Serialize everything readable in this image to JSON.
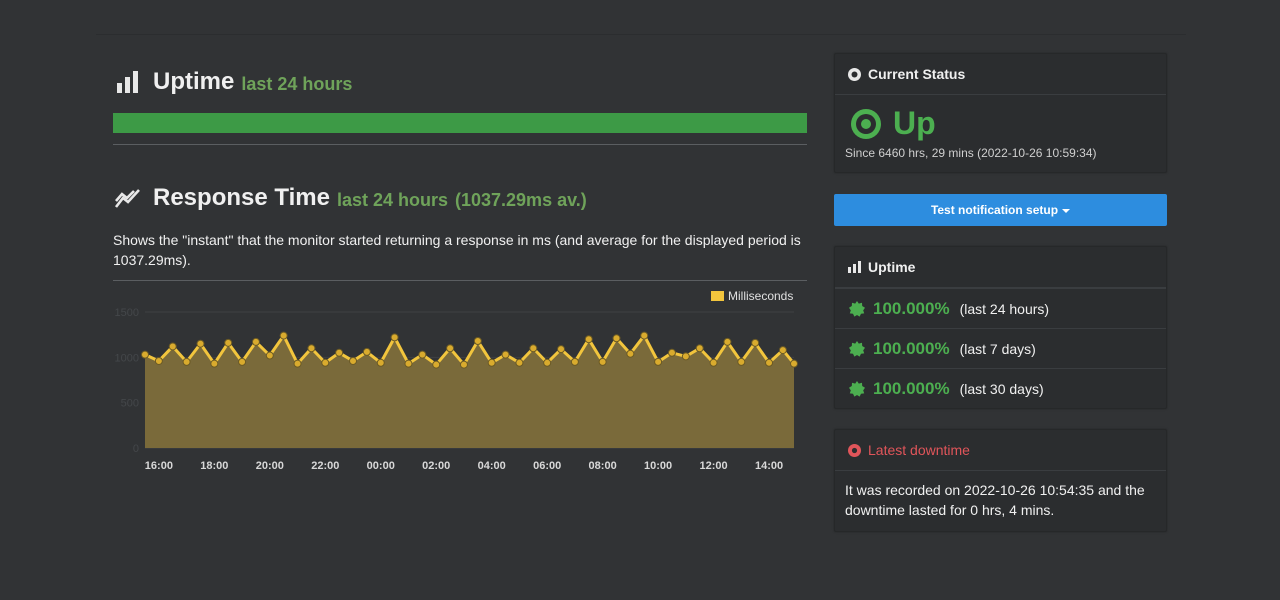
{
  "uptime_section": {
    "title": "Uptime",
    "subtitle": "last 24 hours",
    "bar_fraction": 1.0
  },
  "response_section": {
    "title": "Response Time",
    "subtitle": "last 24 hours",
    "average": "(1037.29ms av.)",
    "description": "Shows the \"instant\" that the monitor started returning a response in ms (and average for the displayed period is 1037.29ms)."
  },
  "chart_data": {
    "type": "area",
    "title": "",
    "xlabel": "",
    "ylabel": "",
    "legend": {
      "label": "Milliseconds",
      "placement": "top-right"
    },
    "ylim": [
      0,
      1500
    ],
    "y_ticks": [
      "1500",
      "1000",
      "500",
      "0"
    ],
    "x_ticks": [
      "16:00",
      "18:00",
      "20:00",
      "22:00",
      "00:00",
      "02:00",
      "04:00",
      "06:00",
      "08:00",
      "10:00",
      "12:00",
      "14:00"
    ],
    "x_hours_range": [
      15.5,
      14.9
    ],
    "series": [
      {
        "name": "Milliseconds",
        "color": "#f2c53d",
        "x": [
          "15:30",
          "16:00",
          "16:30",
          "17:00",
          "17:30",
          "18:00",
          "18:30",
          "19:00",
          "19:30",
          "20:00",
          "20:30",
          "21:00",
          "21:30",
          "22:00",
          "22:30",
          "23:00",
          "23:30",
          "00:00",
          "00:30",
          "01:00",
          "01:30",
          "02:00",
          "02:30",
          "03:00",
          "03:30",
          "04:00",
          "04:30",
          "05:00",
          "05:30",
          "06:00",
          "06:30",
          "07:00",
          "07:30",
          "08:00",
          "08:30",
          "09:00",
          "09:30",
          "10:00",
          "10:30",
          "11:00",
          "11:30",
          "12:00",
          "12:30",
          "13:00",
          "13:30",
          "14:00",
          "14:30",
          "14:54"
        ],
        "values": [
          1030,
          960,
          1120,
          950,
          1150,
          930,
          1160,
          950,
          1170,
          1020,
          1240,
          930,
          1100,
          940,
          1050,
          960,
          1060,
          940,
          1220,
          930,
          1030,
          920,
          1100,
          920,
          1180,
          940,
          1030,
          940,
          1100,
          940,
          1090,
          950,
          1200,
          950,
          1210,
          1040,
          1240,
          950,
          1050,
          1010,
          1100,
          940,
          1170,
          950,
          1160,
          940,
          1080,
          930
        ]
      }
    ]
  },
  "current_status": {
    "heading": "Current Status",
    "state": "Up",
    "since": "Since 6460 hrs, 29 mins (2022-10-26 10:59:34)"
  },
  "test_button": {
    "label": "Test notification setup"
  },
  "uptime_panel": {
    "heading": "Uptime",
    "rows": [
      {
        "pct": "100.000%",
        "period": "(last 24 hours)"
      },
      {
        "pct": "100.000%",
        "period": "(last 7 days)"
      },
      {
        "pct": "100.000%",
        "period": "(last 30 days)"
      }
    ]
  },
  "latest_downtime": {
    "heading": "Latest downtime",
    "text": "It was recorded on 2022-10-26 10:54:35 and the downtime lasted for 0 hrs, 4 mins."
  },
  "colors": {
    "background": "#313335",
    "panel": "#2b2d2f",
    "up_green": "#4caf50",
    "uptime_bar": "#3d9a46",
    "subtitle_green": "#6fa35a",
    "button_blue": "#2d8ddf",
    "down_red": "#e0555a",
    "series_yellow": "#f2c53d",
    "area_fill": "#7a6a3a"
  }
}
